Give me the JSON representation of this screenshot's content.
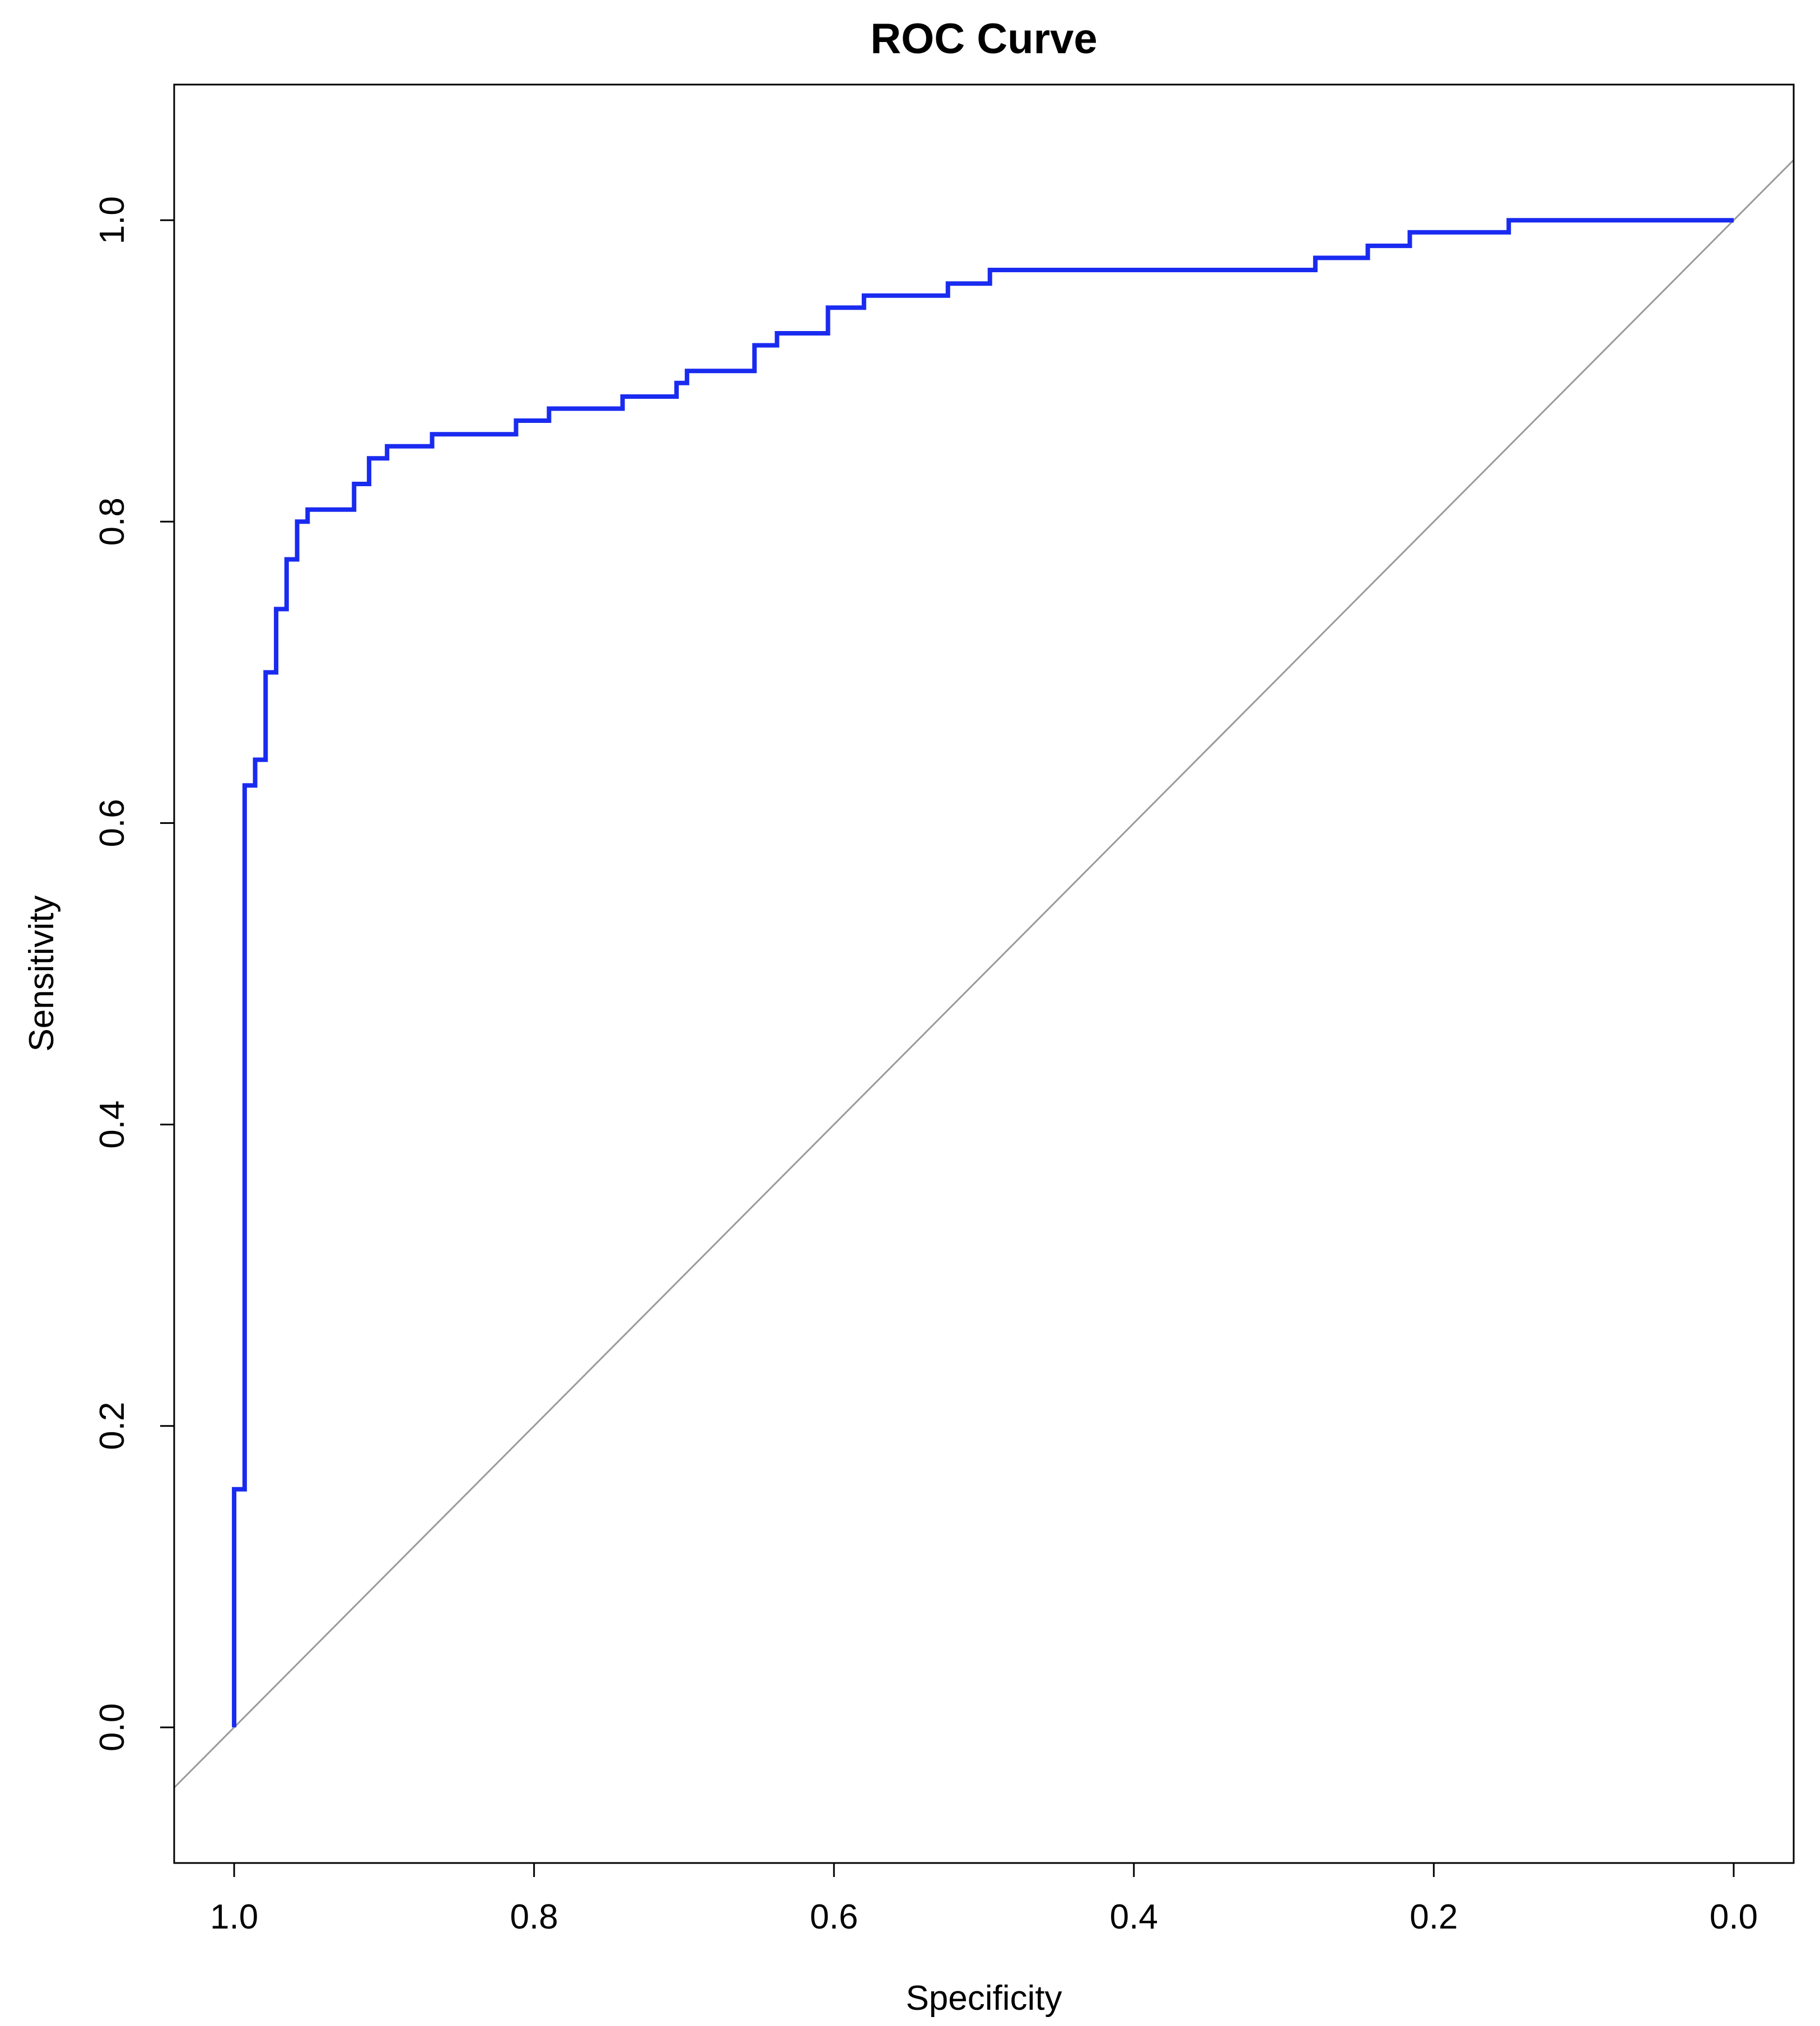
{
  "chart_data": {
    "type": "line",
    "title": "ROC Curve",
    "xlabel": "Specificity",
    "ylabel": "Sensitivity",
    "x_reversed": true,
    "xlim": [
      1.04,
      -0.04
    ],
    "ylim": [
      -0.09,
      1.09
    ],
    "xticks": [
      1.0,
      0.8,
      0.6,
      0.4,
      0.2,
      0.0
    ],
    "xtick_labels": [
      "1.0",
      "0.8",
      "0.6",
      "0.4",
      "0.2",
      "0.0"
    ],
    "yticks": [
      0.0,
      0.2,
      0.4,
      0.6,
      0.8,
      1.0
    ],
    "ytick_labels": [
      "0.0",
      "0.2",
      "0.4",
      "0.6",
      "0.8",
      "1.0"
    ],
    "grid": false,
    "legend": "none",
    "series": [
      {
        "color": "#1a2bf0",
        "step": true,
        "x": [
          1.0,
          1.0,
          0.993,
          0.993,
          0.986,
          0.986,
          0.979,
          0.979,
          0.972,
          0.972,
          0.965,
          0.965,
          0.958,
          0.958,
          0.951,
          0.951,
          0.944,
          0.944,
          0.92,
          0.92,
          0.91,
          0.91,
          0.898,
          0.898,
          0.868,
          0.868,
          0.812,
          0.812,
          0.79,
          0.79,
          0.741,
          0.741,
          0.705,
          0.705,
          0.698,
          0.698,
          0.653,
          0.653,
          0.638,
          0.638,
          0.604,
          0.604,
          0.58,
          0.58,
          0.524,
          0.524,
          0.496,
          0.496,
          0.279,
          0.279,
          0.244,
          0.244,
          0.216,
          0.216,
          0.15,
          0.15,
          0.0
        ],
        "y": [
          0.0,
          0.158,
          0.158,
          0.625,
          0.625,
          0.642,
          0.642,
          0.7,
          0.7,
          0.742,
          0.742,
          0.775,
          0.775,
          0.8,
          0.8,
          0.808,
          0.808,
          0.808,
          0.808,
          0.825,
          0.825,
          0.842,
          0.842,
          0.85,
          0.85,
          0.858,
          0.858,
          0.867,
          0.867,
          0.875,
          0.875,
          0.883,
          0.883,
          0.892,
          0.892,
          0.9,
          0.9,
          0.917,
          0.917,
          0.925,
          0.925,
          0.942,
          0.942,
          0.95,
          0.95,
          0.958,
          0.958,
          0.967,
          0.967,
          0.975,
          0.975,
          0.983,
          0.983,
          0.992,
          0.992,
          1.0,
          1.0
        ]
      }
    ],
    "reference_line": {
      "color": "#9a9a9a",
      "from": [
        1.0,
        0.0
      ],
      "to": [
        0.0,
        1.0
      ]
    }
  }
}
